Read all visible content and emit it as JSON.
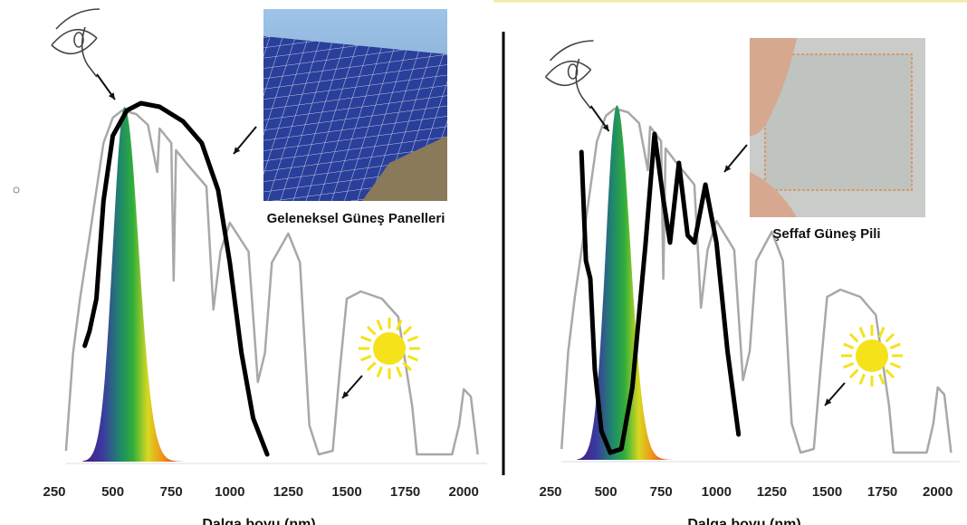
{
  "panels": [
    {
      "caption": "Geleneksel Güneş Panelleri",
      "xlabel": "Dalga boyu (nm)",
      "ticks": [
        "250",
        "500",
        "750",
        "1000",
        "1250",
        "1500",
        "1750",
        "2000"
      ],
      "photo": "solar-panels-photo"
    },
    {
      "caption": "Şeffaf Güneş Pili",
      "xlabel": "Dalga boyu (nm)",
      "ticks": [
        "250",
        "500",
        "750",
        "1000",
        "1250",
        "1500",
        "1750",
        "2000"
      ],
      "photo": "transparent-solar-cell-photo"
    }
  ],
  "colors": {
    "solar_spectrum": "#a8a8a8",
    "absorption_curve": "#000000",
    "sun": "#f5e21a",
    "panel_blue": "#2a3f9a"
  }
}
